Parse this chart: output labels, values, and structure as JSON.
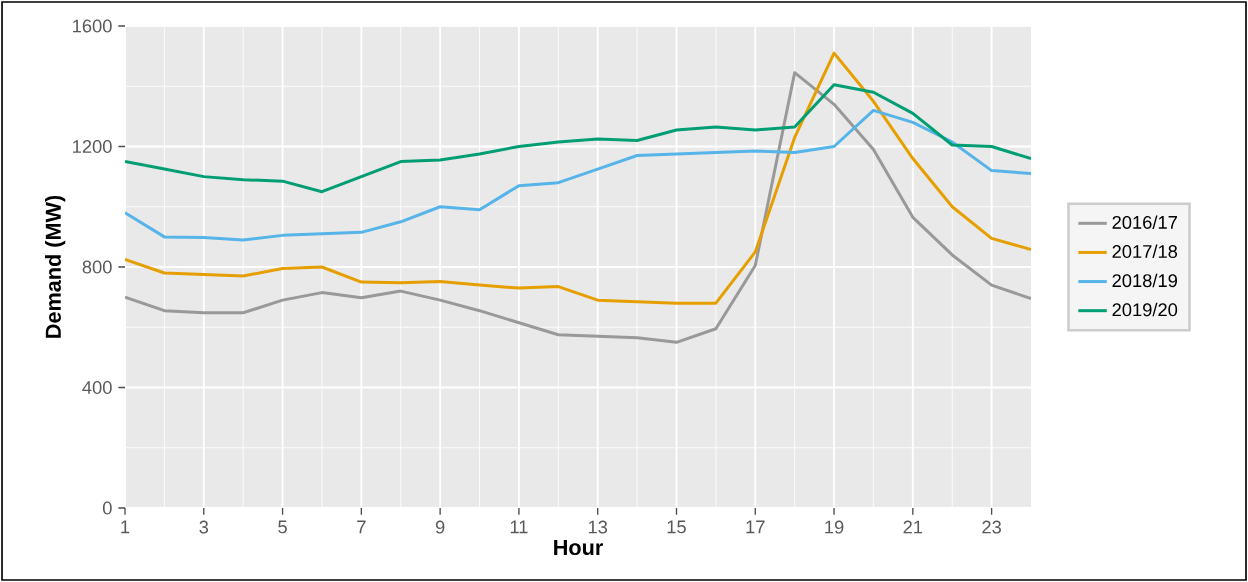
{
  "chart_data": {
    "type": "line",
    "xlabel": "Hour",
    "ylabel": "Demand (MW)",
    "x": [
      1,
      2,
      3,
      4,
      5,
      6,
      7,
      8,
      9,
      10,
      11,
      12,
      13,
      14,
      15,
      16,
      17,
      18,
      19,
      20,
      21,
      22,
      23,
      24
    ],
    "series": [
      {
        "name": "2016/17",
        "color": "#999999",
        "values": [
          700,
          655,
          648,
          648,
          690,
          715,
          698,
          720,
          690,
          655,
          615,
          575,
          570,
          565,
          550,
          595,
          805,
          1445,
          1340,
          1190,
          965,
          840,
          740,
          695
        ]
      },
      {
        "name": "2017/18",
        "color": "#e69f00",
        "values": [
          825,
          780,
          775,
          770,
          795,
          800,
          750,
          748,
          752,
          740,
          730,
          735,
          690,
          685,
          680,
          680,
          850,
          1230,
          1510,
          1350,
          1160,
          1000,
          895,
          858
        ]
      },
      {
        "name": "2018/19",
        "color": "#56b4e9",
        "values": [
          980,
          900,
          898,
          890,
          905,
          910,
          915,
          950,
          1000,
          990,
          1070,
          1080,
          1125,
          1170,
          1175,
          1180,
          1185,
          1180,
          1200,
          1320,
          1280,
          1215,
          1120,
          1110
        ]
      },
      {
        "name": "2019/20",
        "color": "#009e73",
        "values": [
          1150,
          1125,
          1100,
          1090,
          1085,
          1050,
          1100,
          1150,
          1155,
          1175,
          1200,
          1215,
          1225,
          1220,
          1255,
          1265,
          1255,
          1265,
          1405,
          1380,
          1310,
          1205,
          1200,
          1160
        ]
      }
    ],
    "xlim": [
      1,
      24
    ],
    "xticks": [
      1,
      3,
      5,
      7,
      9,
      11,
      13,
      15,
      17,
      19,
      21,
      23
    ],
    "ylim": [
      0,
      1600
    ],
    "yticks": [
      0,
      400,
      800,
      1200,
      1600
    ],
    "grid": true,
    "legend": "right",
    "marker": "none",
    "line_style": "solid"
  }
}
